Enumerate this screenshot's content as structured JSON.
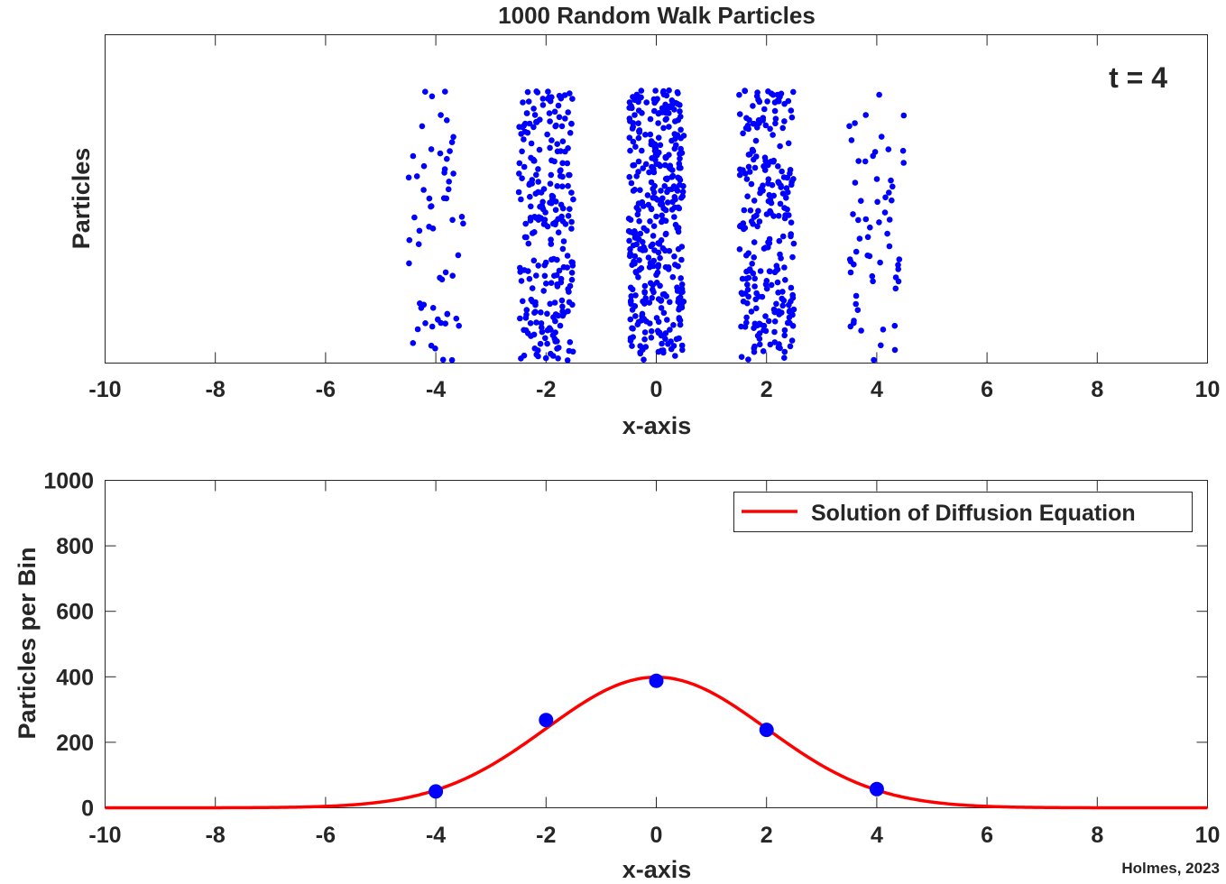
{
  "chart_data": [
    {
      "type": "scatter",
      "title": "1000 Random Walk Particles",
      "xlabel": "x-axis",
      "ylabel": "Particles",
      "xlim": [
        -10,
        10
      ],
      "x_ticks": [
        "-10",
        "-8",
        "-6",
        "-4",
        "-2",
        "0",
        "2",
        "4",
        "6",
        "8",
        "10"
      ],
      "annotation": "t = 4",
      "grid": false,
      "series": [
        {
          "color": "#0000ff",
          "marker": "dot",
          "columns": [
            {
              "center": -4,
              "particles": 62
            },
            {
              "center": -2,
              "particles": 250
            },
            {
              "center": 0,
              "particles": 375
            },
            {
              "center": 2,
              "particles": 250
            },
            {
              "center": 4,
              "particles": 62
            }
          ]
        }
      ]
    },
    {
      "type": "line",
      "xlabel": "x-axis",
      "ylabel": "Particles per Bin",
      "xlim": [
        -10,
        10
      ],
      "ylim": [
        0,
        1000
      ],
      "x_ticks": [
        "-10",
        "-8",
        "-6",
        "-4",
        "-2",
        "0",
        "2",
        "4",
        "6",
        "8",
        "10"
      ],
      "y_ticks": [
        "0",
        "200",
        "400",
        "600",
        "800",
        "1000"
      ],
      "legend_position": "top-right",
      "grid": false,
      "series": [
        {
          "name": "Solution of Diffusion Equation",
          "type": "line",
          "color": "#ff0000",
          "peak": 399,
          "variance": 4
        },
        {
          "type": "scatter",
          "color": "#0000ff",
          "x": [
            -4,
            -2,
            0,
            2,
            4
          ],
          "y": [
            50,
            268,
            388,
            238,
            57
          ]
        }
      ]
    }
  ],
  "credit": "Holmes, 2023"
}
